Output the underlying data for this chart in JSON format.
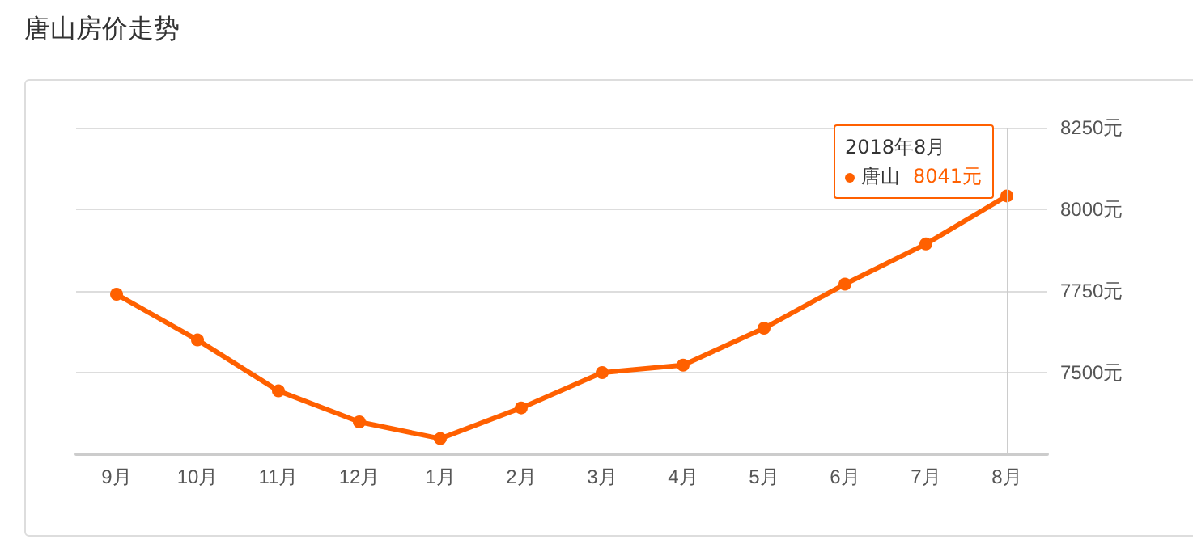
{
  "chart_data": {
    "type": "line",
    "title": "唐山房价走势",
    "categories": [
      "9月",
      "10月",
      "11月",
      "12月",
      "1月",
      "2月",
      "3月",
      "4月",
      "5月",
      "6月",
      "7月",
      "8月"
    ],
    "series": [
      {
        "name": "唐山",
        "color": "#ff6000",
        "values": [
          7740,
          7600,
          7444,
          7349,
          7298,
          7392,
          7500,
          7523,
          7636,
          7771,
          7894,
          8041
        ],
        "value_labels": [
          null,
          null,
          null,
          null,
          null,
          null,
          null,
          null,
          null,
          null,
          null,
          "8041元"
        ]
      }
    ],
    "ylim": [
      7250,
      8250
    ],
    "yticks": [
      {
        "value": 7500,
        "label": "7500元"
      },
      {
        "value": 7750,
        "label": "7750元"
      },
      {
        "value": 8000,
        "label": "8000元"
      },
      {
        "value": 8250,
        "label": "8250元"
      }
    ],
    "annotations": [
      "2018年8月"
    ],
    "ref_lines": [
      {
        "axis": "x",
        "value": "8月",
        "color": "#cccccc"
      }
    ],
    "grid": "y",
    "marker": "circle",
    "line_style": "solid",
    "legend": "top right"
  }
}
